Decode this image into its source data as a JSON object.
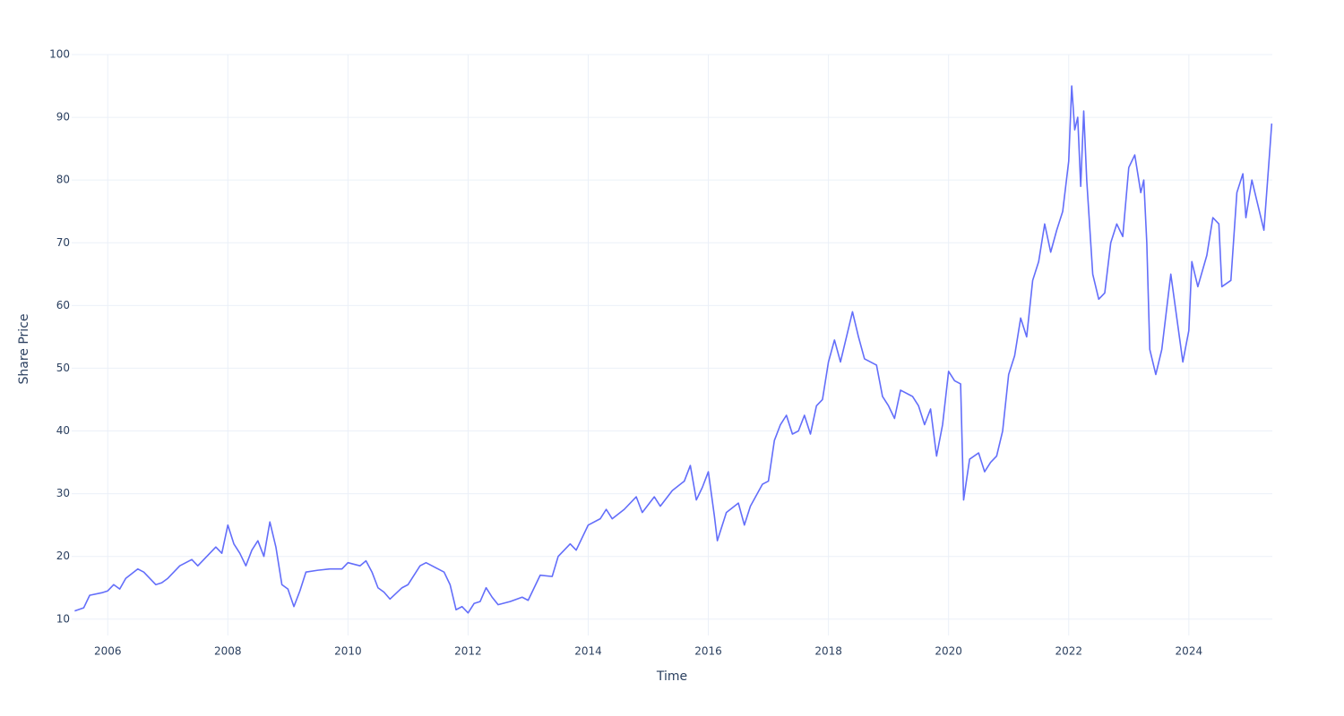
{
  "chart_data": {
    "type": "line",
    "x_label": "Time",
    "y_label": "Share Price",
    "xlim": [
      2005.4,
      2025.39
    ],
    "ylim": [
      7.4,
      100
    ],
    "xticks": [
      2006,
      2008,
      2010,
      2012,
      2014,
      2016,
      2018,
      2020,
      2022,
      2024
    ],
    "yticks": [
      10,
      20,
      30,
      40,
      50,
      60,
      70,
      80,
      90,
      100
    ],
    "grid": true,
    "x": [
      2005.45,
      2005.6,
      2005.7,
      2005.9,
      2006.0,
      2006.1,
      2006.2,
      2006.3,
      2006.5,
      2006.6,
      2006.8,
      2006.9,
      2007.0,
      2007.2,
      2007.4,
      2007.5,
      2007.6,
      2007.8,
      2007.9,
      2008.0,
      2008.1,
      2008.2,
      2008.3,
      2008.4,
      2008.5,
      2008.6,
      2008.7,
      2008.8,
      2008.9,
      2009.0,
      2009.1,
      2009.2,
      2009.3,
      2009.5,
      2009.7,
      2009.9,
      2010.0,
      2010.2,
      2010.3,
      2010.4,
      2010.5,
      2010.6,
      2010.7,
      2010.9,
      2011.0,
      2011.2,
      2011.3,
      2011.5,
      2011.6,
      2011.7,
      2011.8,
      2011.9,
      2012.0,
      2012.1,
      2012.2,
      2012.3,
      2012.4,
      2012.5,
      2012.7,
      2012.9,
      2013.0,
      2013.2,
      2013.4,
      2013.5,
      2013.7,
      2013.8,
      2014.0,
      2014.2,
      2014.3,
      2014.4,
      2014.6,
      2014.8,
      2014.9,
      2015.1,
      2015.2,
      2015.4,
      2015.6,
      2015.7,
      2015.8,
      2015.9,
      2016.0,
      2016.1,
      2016.15,
      2016.3,
      2016.5,
      2016.6,
      2016.7,
      2016.9,
      2017.0,
      2017.1,
      2017.2,
      2017.3,
      2017.4,
      2017.5,
      2017.6,
      2017.7,
      2017.8,
      2017.9,
      2018.0,
      2018.1,
      2018.2,
      2018.3,
      2018.4,
      2018.5,
      2018.6,
      2018.7,
      2018.8,
      2018.9,
      2019.0,
      2019.1,
      2019.2,
      2019.4,
      2019.5,
      2019.6,
      2019.7,
      2019.8,
      2019.9,
      2020.0,
      2020.1,
      2020.2,
      2020.25,
      2020.35,
      2020.5,
      2020.6,
      2020.7,
      2020.8,
      2020.9,
      2021.0,
      2021.1,
      2021.2,
      2021.3,
      2021.4,
      2021.5,
      2021.6,
      2021.7,
      2021.8,
      2021.9,
      2022.0,
      2022.05,
      2022.1,
      2022.15,
      2022.2,
      2022.25,
      2022.3,
      2022.4,
      2022.5,
      2022.6,
      2022.7,
      2022.8,
      2022.9,
      2023.0,
      2023.1,
      2023.2,
      2023.25,
      2023.3,
      2023.35,
      2023.45,
      2023.55,
      2023.7,
      2023.8,
      2023.9,
      2024.0,
      2024.05,
      2024.15,
      2024.3,
      2024.4,
      2024.5,
      2024.55,
      2024.7,
      2024.8,
      2024.9,
      2024.95,
      2025.05,
      2025.15,
      2025.25,
      2025.35,
      2025.38
    ],
    "series": [
      {
        "color": "#636efa",
        "values": [
          11.3,
          11.8,
          13.8,
          14.2,
          14.5,
          15.5,
          14.8,
          16.5,
          18.0,
          17.5,
          15.5,
          15.8,
          16.5,
          18.5,
          19.5,
          18.5,
          19.5,
          21.5,
          20.5,
          25.0,
          22.0,
          20.5,
          18.5,
          21.0,
          22.5,
          20.0,
          25.5,
          21.5,
          15.5,
          14.8,
          12.0,
          14.5,
          17.5,
          17.8,
          18.0,
          18.0,
          19.0,
          18.5,
          19.3,
          17.5,
          15.0,
          14.3,
          13.2,
          15.0,
          15.5,
          18.5,
          19.0,
          18.0,
          17.5,
          15.5,
          11.5,
          12.0,
          11.0,
          12.5,
          12.8,
          15.0,
          13.5,
          12.3,
          12.8,
          13.5,
          13.0,
          17.0,
          16.8,
          20.0,
          22.0,
          21.0,
          25.0,
          26.0,
          27.5,
          26.0,
          27.5,
          29.5,
          27.0,
          29.5,
          28.0,
          30.5,
          32.0,
          34.5,
          29.0,
          31.0,
          33.5,
          26.5,
          22.5,
          27.0,
          28.5,
          25.0,
          28.0,
          31.5,
          32.0,
          38.5,
          41.0,
          42.5,
          39.5,
          40.0,
          42.5,
          39.5,
          44.0,
          45.0,
          51.0,
          54.5,
          51.0,
          55.0,
          59.0,
          55.0,
          51.5,
          51.0,
          50.5,
          45.5,
          44.0,
          42.0,
          46.5,
          45.5,
          44.0,
          41.0,
          43.5,
          36.0,
          41.0,
          49.5,
          48.0,
          47.5,
          29.0,
          35.5,
          36.5,
          33.5,
          35.0,
          36.0,
          40.0,
          49.0,
          52.0,
          58.0,
          55.0,
          64.0,
          67.0,
          73.0,
          68.5,
          72.0,
          75.0,
          83.0,
          95.0,
          88.0,
          90.0,
          79.0,
          91.0,
          80.0,
          65.0,
          61.0,
          62.0,
          70.0,
          73.0,
          71.0,
          82.0,
          84.0,
          78.0,
          80.0,
          70.0,
          53.0,
          49.0,
          53.0,
          65.0,
          58.0,
          51.0,
          56.0,
          67.0,
          63.0,
          68.0,
          74.0,
          73.0,
          63.0,
          64.0,
          78.0,
          81.0,
          74.0,
          80.0,
          76.0,
          72.0,
          85.0,
          89.0
        ]
      }
    ]
  }
}
